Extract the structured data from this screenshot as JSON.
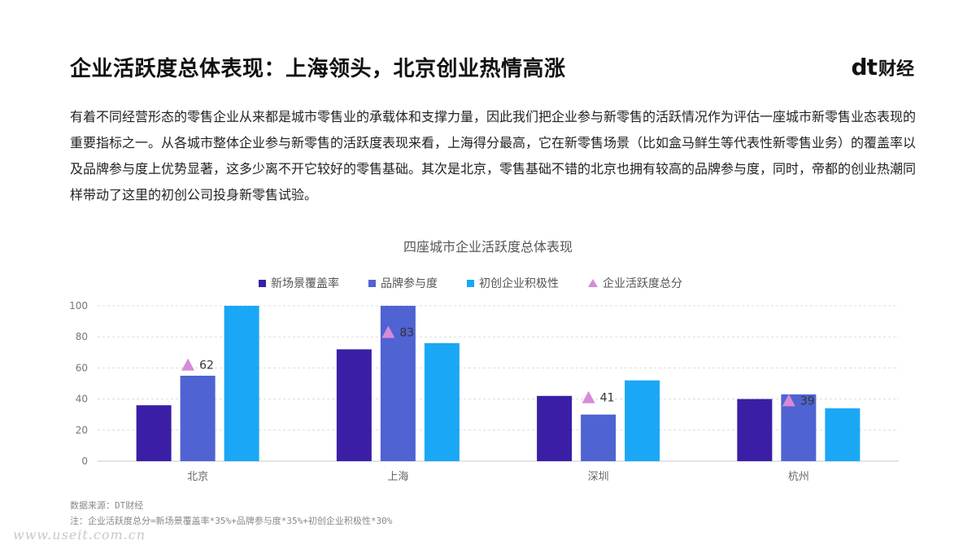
{
  "page": {
    "title": "企业活跃度总体表现：上海领头，北京创业热情高涨",
    "logo_dt": "dt",
    "logo_cn": "财经",
    "intro": "有着不同经营形态的零售企业从来都是城市零售业的承载体和支撑力量，因此我们把企业参与新零售的活跃情况作为评估一座城市新零售业态表现的重要指标之一。从各城市整体企业参与新零售的活跃度表现来看，上海得分最高，它在新零售场景（比如盒马鲜生等代表性新零售业务）的覆盖率以及品牌参与度上优势显著，这多少离不开它较好的零售基础。其次是北京，零售基础不错的北京也拥有较高的品牌参与度，同时，帝都的创业热潮同样带动了这里的初创公司投身新零售试验。",
    "source": "数据来源：DT财经",
    "note": "注：企业活跃度总分=新场景覆盖率*35%+品牌参与度*35%+初创企业积极性*30%",
    "watermark": "www.useit.com.cn"
  },
  "chart_data": {
    "type": "bar",
    "title": "四座城市企业活跃度总体表现",
    "categories": [
      "北京",
      "上海",
      "深圳",
      "杭州"
    ],
    "ylim": [
      0,
      100
    ],
    "yticks": [
      0,
      20,
      40,
      60,
      80,
      100
    ],
    "grid": true,
    "legend_position": "top",
    "series": [
      {
        "name": "新场景覆盖率",
        "color": "#3a1fa6",
        "values": [
          36,
          72,
          42,
          40
        ]
      },
      {
        "name": "品牌参与度",
        "color": "#4f63d2",
        "values": [
          55,
          100,
          30,
          43
        ]
      },
      {
        "name": "初创企业积极性",
        "color": "#1aa7f5",
        "values": [
          100,
          76,
          52,
          34
        ]
      }
    ],
    "overlay": {
      "name": "企业活跃度总分",
      "type": "scatter",
      "marker": "triangle",
      "color": "#d78ad8",
      "values": [
        62,
        83,
        41,
        39
      ]
    }
  }
}
